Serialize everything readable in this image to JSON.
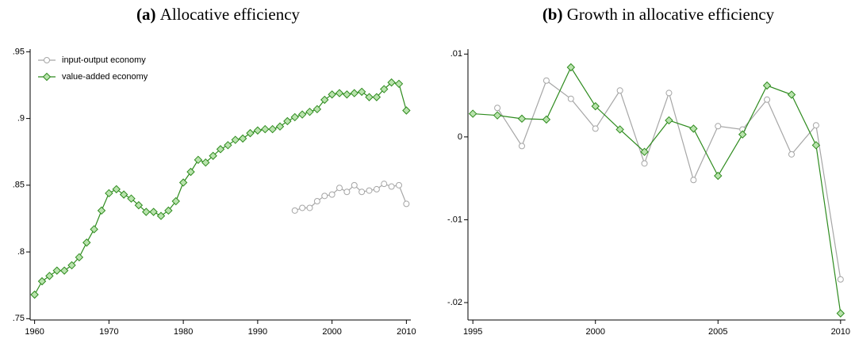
{
  "chart_data": [
    {
      "type": "line",
      "label": "(a)",
      "title": "Allocative efficiency",
      "x": [
        1960,
        1961,
        1962,
        1963,
        1964,
        1965,
        1966,
        1967,
        1968,
        1969,
        1970,
        1971,
        1972,
        1973,
        1974,
        1975,
        1976,
        1977,
        1978,
        1979,
        1980,
        1981,
        1982,
        1983,
        1984,
        1985,
        1986,
        1987,
        1988,
        1989,
        1990,
        1991,
        1992,
        1993,
        1994,
        1995,
        1996,
        1997,
        1998,
        1999,
        2000,
        2001,
        2002,
        2003,
        2004,
        2005,
        2006,
        2007,
        2008,
        2009,
        2010
      ],
      "series": [
        {
          "name": "input-output economy",
          "color": "#a6a6a6",
          "marker": "circle",
          "marker_fill": "#ffffff",
          "values": [
            null,
            null,
            null,
            null,
            null,
            null,
            null,
            null,
            null,
            null,
            null,
            null,
            null,
            null,
            null,
            null,
            null,
            null,
            null,
            null,
            null,
            null,
            null,
            null,
            null,
            null,
            null,
            null,
            null,
            null,
            null,
            null,
            null,
            null,
            null,
            0.831,
            0.833,
            0.833,
            0.838,
            0.842,
            0.843,
            0.848,
            0.845,
            0.85,
            0.845,
            0.846,
            0.847,
            0.851,
            0.849,
            0.85,
            0.836
          ]
        },
        {
          "name": "value-added economy",
          "color": "#2e8b1e",
          "marker": "diamond",
          "marker_fill": "#b9e3ad",
          "values": [
            0.768,
            0.778,
            0.782,
            0.786,
            0.786,
            0.79,
            0.796,
            0.807,
            0.817,
            0.831,
            0.844,
            0.847,
            0.843,
            0.84,
            0.835,
            0.83,
            0.83,
            0.827,
            0.831,
            0.838,
            0.852,
            0.86,
            0.869,
            0.867,
            0.872,
            0.877,
            0.88,
            0.884,
            0.885,
            0.889,
            0.891,
            0.892,
            0.892,
            0.894,
            0.898,
            0.901,
            0.903,
            0.905,
            0.907,
            0.914,
            0.918,
            0.919,
            0.918,
            0.919,
            0.92,
            0.916,
            0.916,
            0.922,
            0.927,
            0.926,
            0.906
          ]
        }
      ],
      "xlim": [
        1959.4,
        2010.6
      ],
      "xticks": [
        1960,
        1970,
        1980,
        1990,
        2000,
        2010
      ],
      "ylim": [
        0.749,
        0.952
      ],
      "yticks": [
        {
          "value": 0.75,
          "label": ".75"
        },
        {
          "value": 0.8,
          "label": ".8"
        },
        {
          "value": 0.85,
          "label": ".85"
        },
        {
          "value": 0.9,
          "label": ".9"
        },
        {
          "value": 0.95,
          "label": ".95"
        }
      ],
      "grid": false,
      "legend": "upper left"
    },
    {
      "type": "line",
      "label": "(b)",
      "title": "Growth in allocative efficiency",
      "x": [
        1995,
        1996,
        1997,
        1998,
        1999,
        2000,
        2001,
        2002,
        2003,
        2004,
        2005,
        2006,
        2007,
        2008,
        2009,
        2010
      ],
      "series": [
        {
          "name": "input-output economy",
          "color": "#a6a6a6",
          "marker": "circle",
          "marker_fill": "#ffffff",
          "values": [
            null,
            0.0035,
            -0.0011,
            0.0068,
            0.0046,
            0.001,
            0.0056,
            -0.0032,
            0.0053,
            -0.0052,
            0.0013,
            0.0009,
            0.0045,
            -0.0021,
            0.0014,
            -0.0172
          ]
        },
        {
          "name": "value-added economy",
          "color": "#2e8b1e",
          "marker": "diamond",
          "marker_fill": "#b9e3ad",
          "values": [
            0.0028,
            0.0026,
            0.0022,
            0.0021,
            0.0084,
            0.0037,
            0.0009,
            -0.0018,
            0.002,
            0.001,
            -0.0047,
            0.0003,
            0.0062,
            0.0051,
            -0.001,
            -0.0213
          ]
        }
      ],
      "xlim": [
        1994.8,
        2010.2
      ],
      "xticks": [
        1995,
        2000,
        2005,
        2010
      ],
      "ylim": [
        -0.0221,
        0.0106
      ],
      "yticks": [
        {
          "value": -0.02,
          "label": "-.02"
        },
        {
          "value": -0.01,
          "label": "-.01"
        },
        0,
        {
          "value": 0.01,
          "label": ".01"
        }
      ],
      "grid": false,
      "legend": "none"
    }
  ]
}
